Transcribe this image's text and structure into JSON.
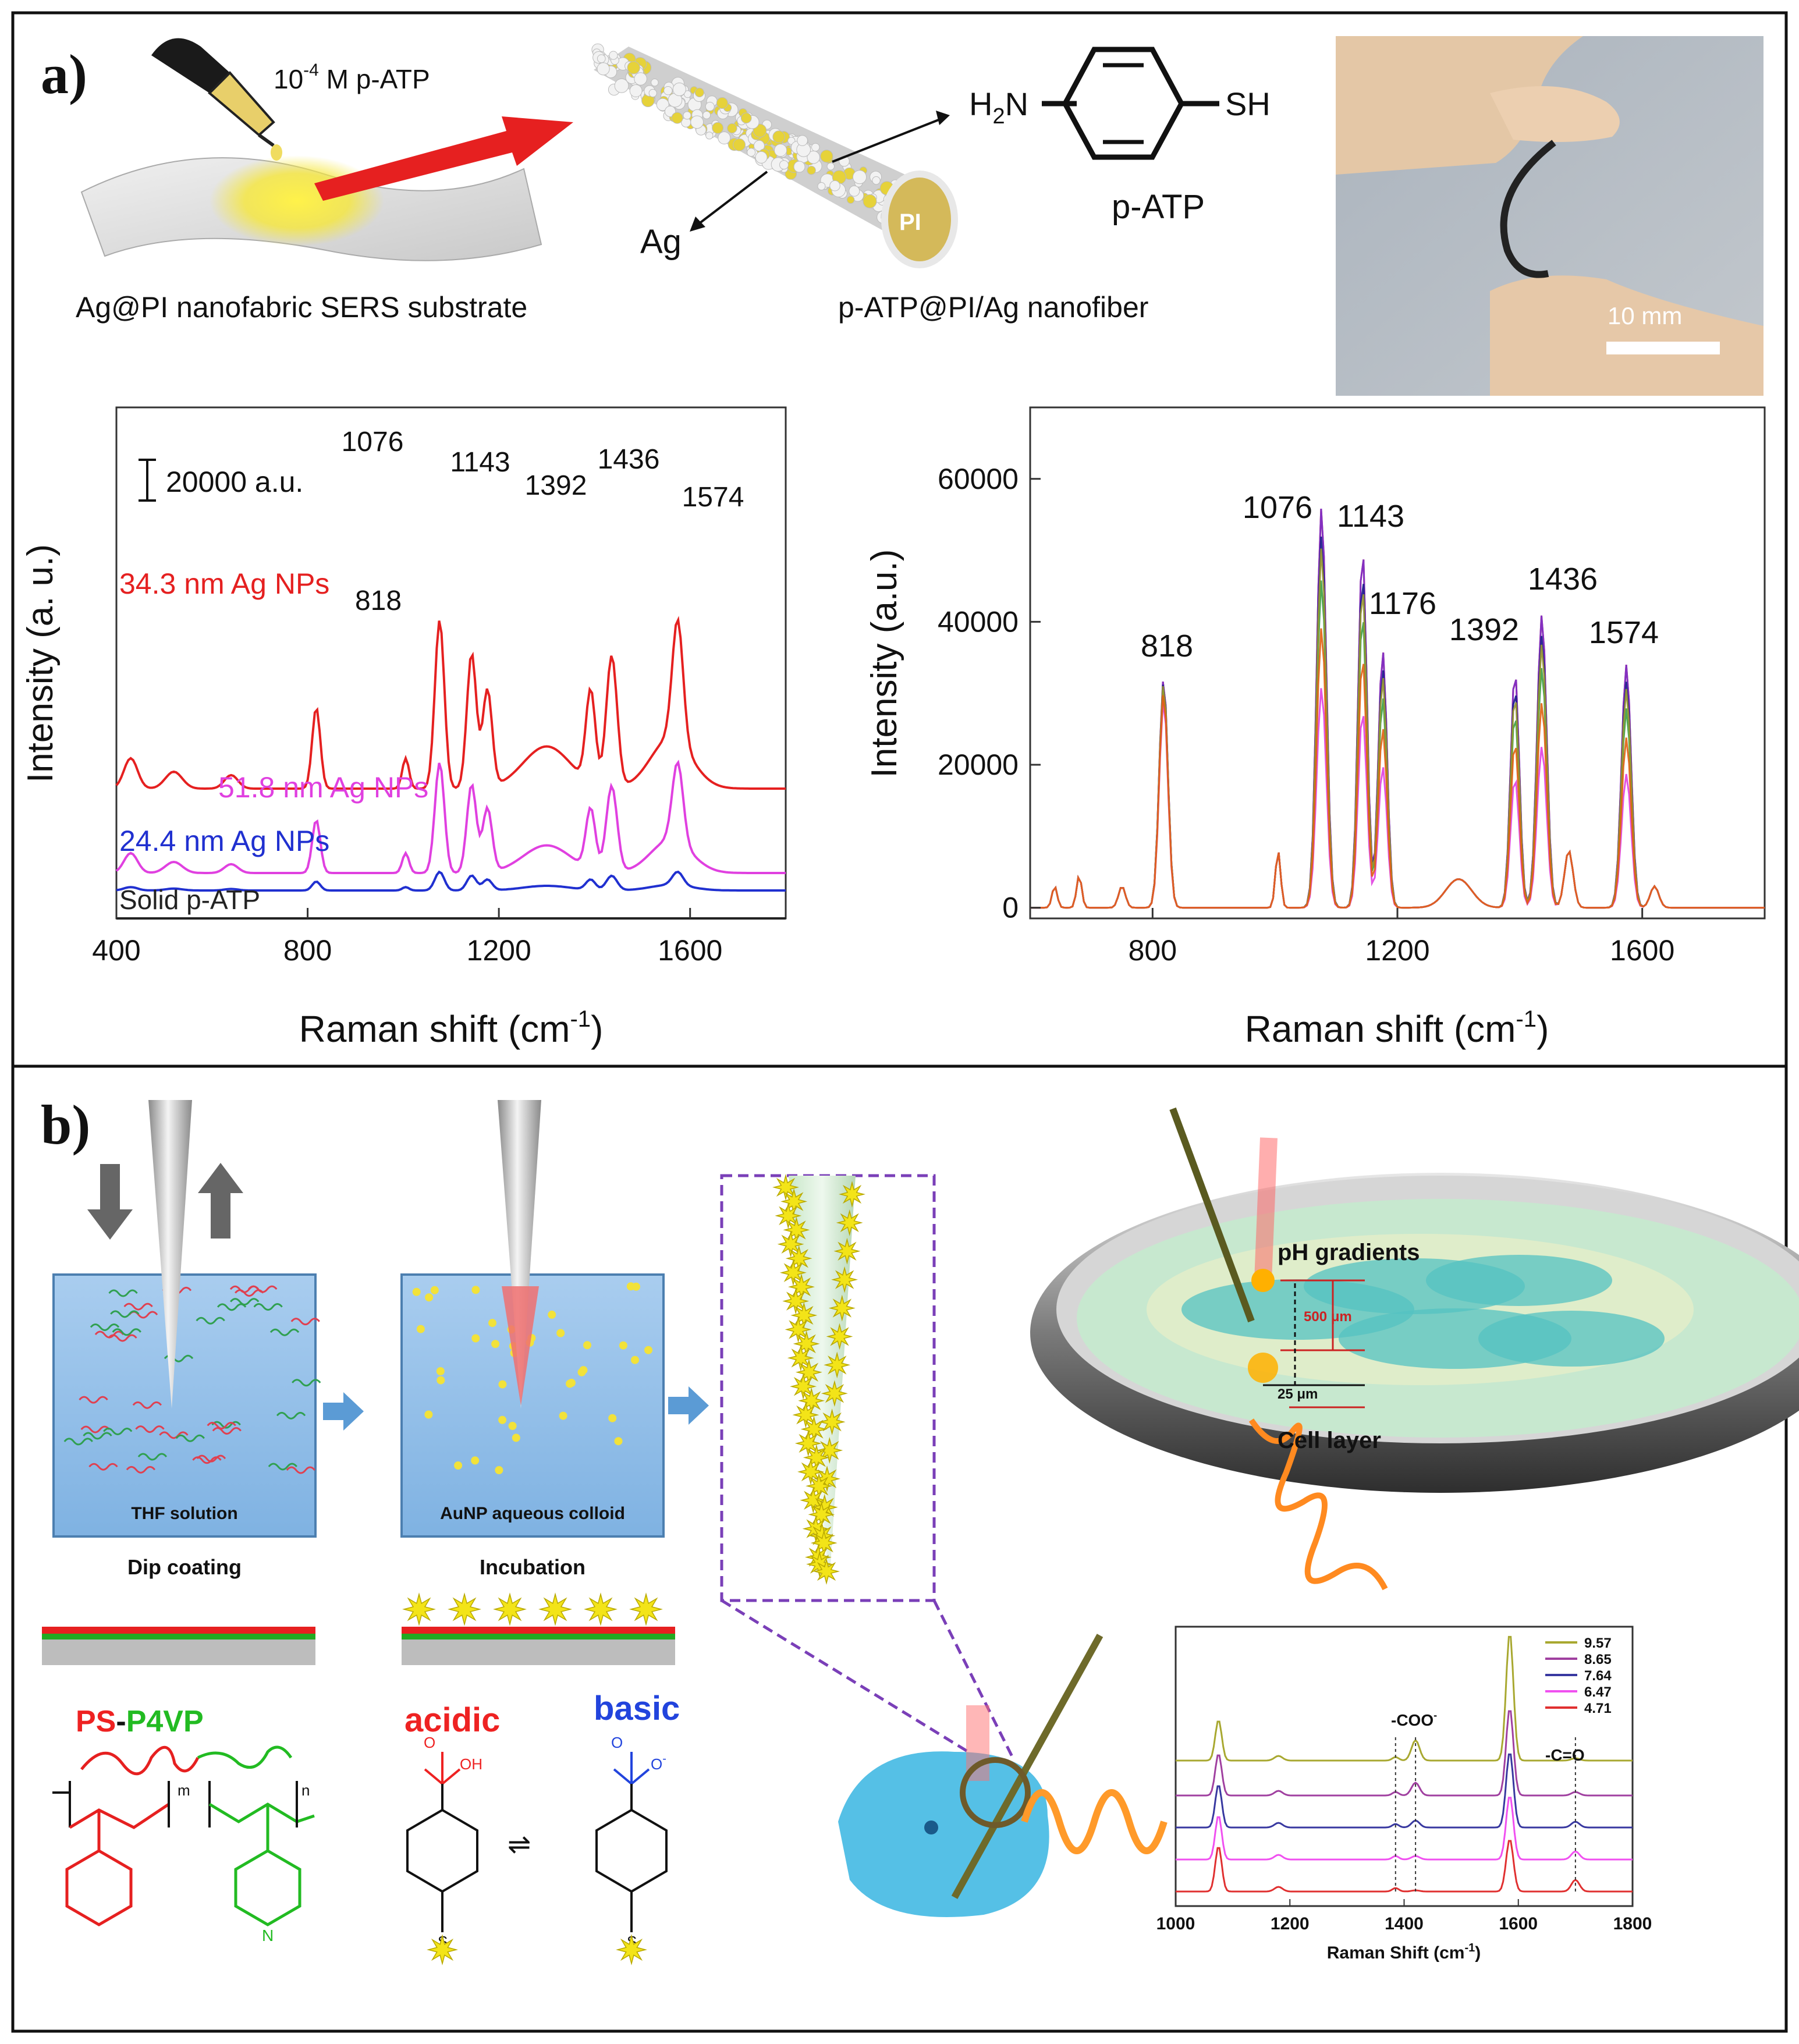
{
  "panel_a": {
    "label": "a)",
    "dropper_text_coef": "10",
    "dropper_text_exp": "-4",
    "dropper_text_rest": " M p-ATP",
    "substrate_caption": "Ag@PI nanofabric SERS substrate",
    "fiber_core_label": "PI",
    "ag_label": "Ag",
    "molecule_left_group": "H",
    "molecule_left_sub": "2",
    "molecule_left_n": "N",
    "molecule_right_group": "SH",
    "molecule_name": "p-ATP",
    "fiber_caption": "p-ATP@PI/Ag nanofiber",
    "photo_scale_label": "10 mm"
  },
  "panel_b": {
    "label": "b)",
    "box1_label": "THF solution",
    "box1_caption": "Dip coating",
    "box2_label": "AuNP aqueous colloid",
    "box2_caption": "Incubation",
    "polymer_ps": "PS",
    "polymer_dash": "-",
    "polymer_p4vp": "P4VP",
    "polymer_m": "m",
    "polymer_n": "n",
    "polymer_nitrogen": "N",
    "acidic_label": "acidic",
    "basic_label": "basic",
    "acid_o": "O",
    "acid_oh": "OH",
    "base_o": "O",
    "base_o_minus": "O",
    "base_minus": "-",
    "sulfur": "S",
    "sulfur2": "S",
    "equilibrium": "⇌",
    "dish_ph_label": "pH gradients",
    "dish_500": "500 μm",
    "dish_25": "25 μm",
    "dish_cell_label": "Cell layer",
    "colors": {
      "ps": "#ee2222",
      "p4vp": "#22bb22",
      "acidic": "#ee2222",
      "basic": "#2244dd"
    }
  },
  "charts": [
    {
      "id": "chart-a1",
      "type": "line",
      "xlabel": "Raman shift (cm",
      "xlabel_sup": "-1",
      "xlabel_close": ")",
      "ylabel": "Intensity (a. u.)",
      "xlim": [
        400,
        1800
      ],
      "xticks": [
        "400",
        "800",
        "1200",
        "1600"
      ],
      "scale_bar_label": "20000 a.u.",
      "series": [
        {
          "name": "34.3 nm Ag NPs",
          "color": "#e52020"
        },
        {
          "name": "51.8 nm Ag NPs",
          "color": "#e040e0"
        },
        {
          "name": "24.4 nm Ag NPs",
          "color": "#2030d0"
        },
        {
          "name": "Solid p-ATP",
          "color": "#222222"
        }
      ],
      "peak_labels": [
        "1076",
        "1143",
        "1392",
        "1436",
        "1574",
        "818"
      ]
    },
    {
      "id": "chart-a2",
      "type": "line",
      "xlabel": "Raman shift (cm",
      "xlabel_sup": "-1",
      "xlabel_close": ")",
      "ylabel": "Intensity (a.u.)",
      "xlim": [
        600,
        1800
      ],
      "ylim": [
        -1500,
        70000
      ],
      "xticks": [
        "800",
        "1200",
        "1600"
      ],
      "yticks": [
        "0",
        "20000",
        "40000",
        "60000"
      ],
      "peak_labels": [
        "818",
        "1076",
        "1143",
        "1176",
        "1392",
        "1436",
        "1574"
      ]
    },
    {
      "id": "chart-b",
      "type": "line",
      "xlabel": "Raman Shift (cm",
      "xlabel_sup": "-1",
      "xlabel_close": ")",
      "xlim": [
        1000,
        1800
      ],
      "xticks": [
        "1000",
        "1200",
        "1400",
        "1600",
        "1800"
      ],
      "legend_position": "top-right",
      "series": [
        {
          "name": "9.57",
          "color": "#a8a830"
        },
        {
          "name": "8.65",
          "color": "#a040a0"
        },
        {
          "name": "7.64",
          "color": "#3838a0"
        },
        {
          "name": "6.47",
          "color": "#f050f0"
        },
        {
          "name": "4.71",
          "color": "#e03030"
        }
      ],
      "annotations": [
        "-COO",
        "-",
        "-C=O"
      ]
    }
  ]
}
